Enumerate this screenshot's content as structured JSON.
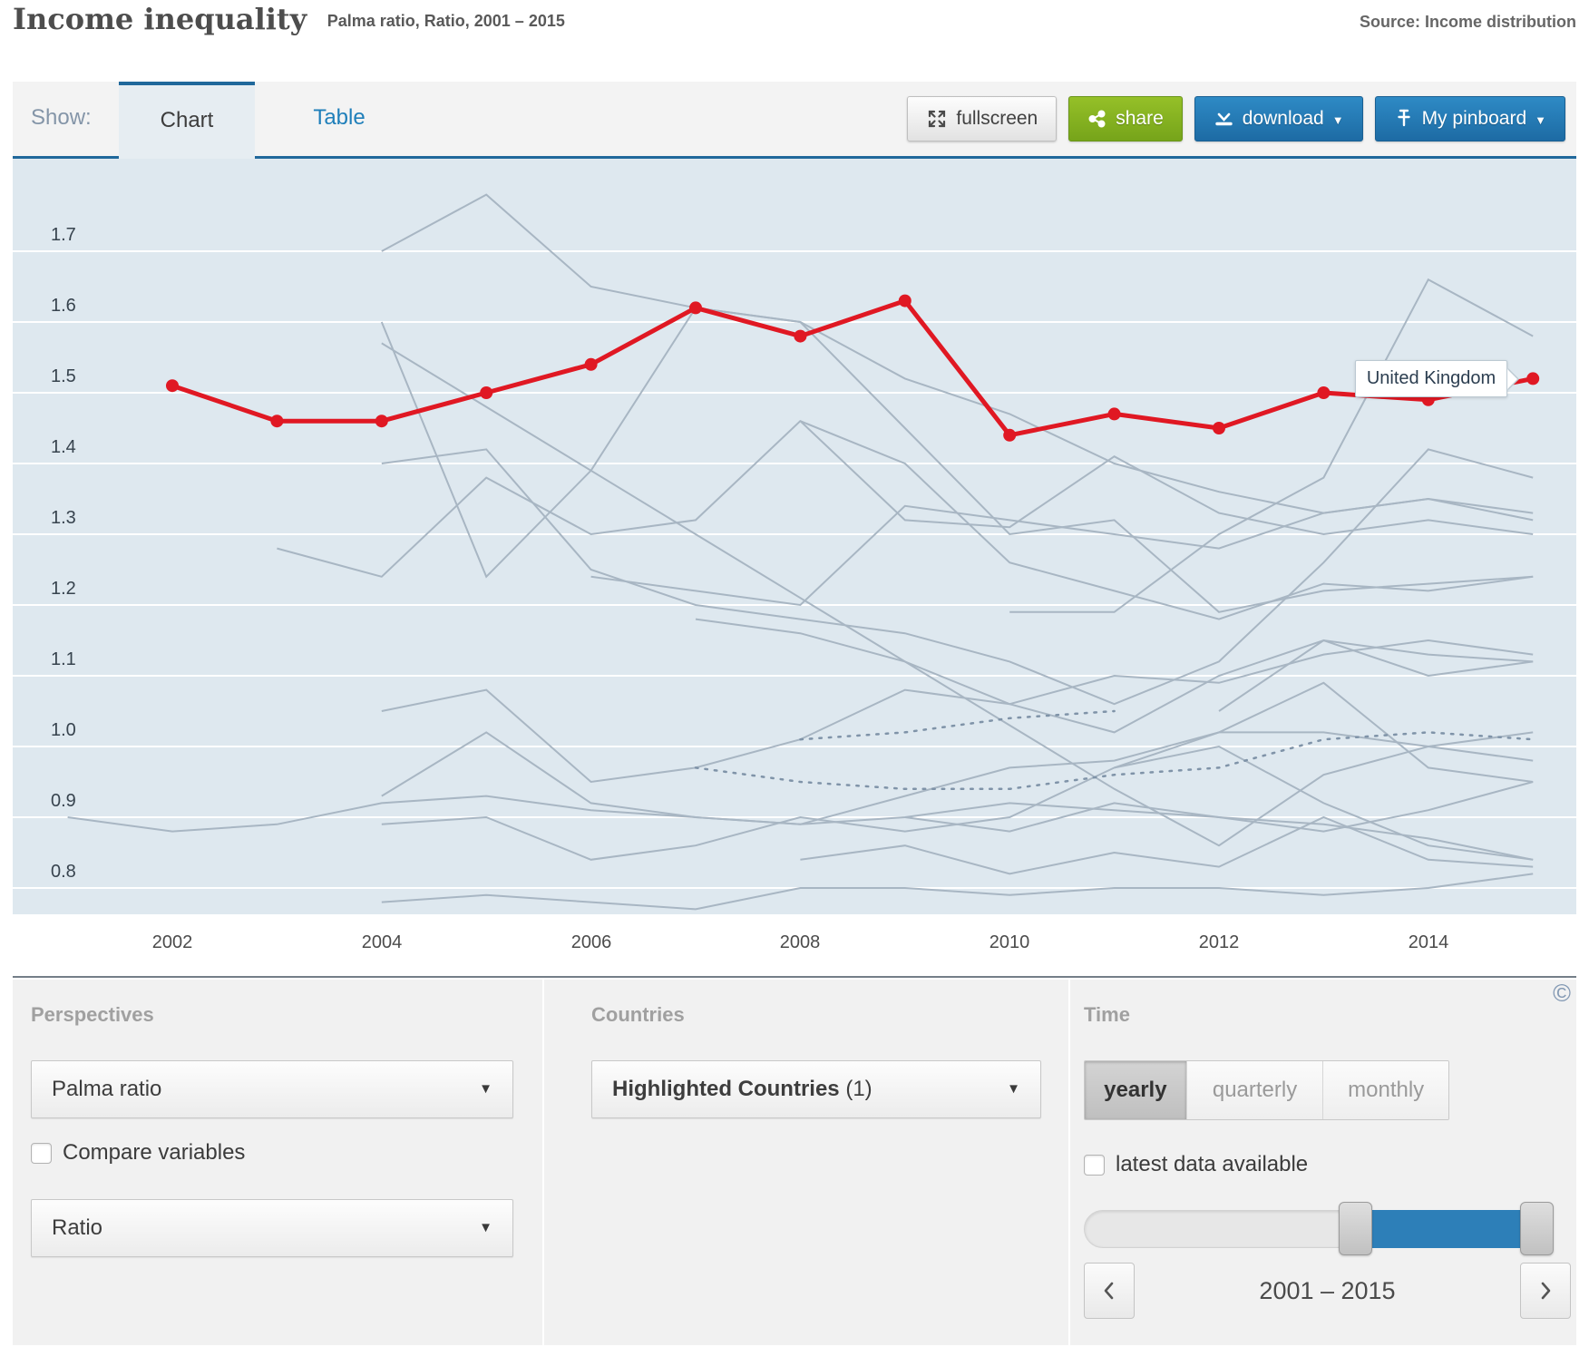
{
  "header": {
    "title": "Income inequality",
    "subtitle": "Palma ratio, Ratio, 2001 – 2015",
    "source": "Source: Income distribution"
  },
  "toolbar": {
    "show_label": "Show:",
    "tabs": [
      {
        "label": "Chart",
        "active": true
      },
      {
        "label": "Table",
        "active": false
      }
    ],
    "fullscreen_label": "fullscreen",
    "share_label": "share",
    "download_label": "download",
    "pinboard_label": "My pinboard"
  },
  "chart_data": {
    "type": "line",
    "title": "Income inequality, Palma ratio, 2001 – 2015",
    "ylabel": "Ratio",
    "xticks": [
      2002,
      2004,
      2006,
      2008,
      2010,
      2012,
      2014
    ],
    "yticks": [
      0.8,
      0.9,
      1.0,
      1.1,
      1.2,
      1.3,
      1.4,
      1.5,
      1.6,
      1.7
    ],
    "xlim": [
      2001,
      2015.5
    ],
    "ylim": [
      0.76,
      1.83
    ],
    "grid": true,
    "colors": {
      "highlight": "#e01823",
      "background_line": "#a8b6c3",
      "plot_bg": "#dee8ef"
    },
    "highlighted": {
      "name": "United Kingdom",
      "years": [
        2002,
        2003,
        2004,
        2005,
        2006,
        2007,
        2008,
        2009,
        2010,
        2011,
        2012,
        2013,
        2014,
        2015
      ],
      "values": [
        1.51,
        1.46,
        1.46,
        1.5,
        1.54,
        1.62,
        1.58,
        1.63,
        1.44,
        1.47,
        1.45,
        1.5,
        1.49,
        1.52
      ]
    },
    "start_year": 2001,
    "background_series": [
      {
        "values": [
          0.9,
          0.88,
          0.89,
          0.92,
          0.93,
          0.91,
          0.9,
          0.89,
          0.9,
          0.92,
          0.91,
          0.9,
          0.89,
          0.87,
          0.84
        ]
      },
      {
        "values": [
          null,
          null,
          null,
          1.7,
          1.78,
          1.65,
          1.62,
          1.6,
          1.52,
          1.47,
          1.4,
          1.36,
          1.33,
          1.35,
          1.33
        ]
      },
      {
        "values": [
          null,
          null,
          null,
          1.6,
          1.24,
          1.39,
          1.62,
          1.6,
          1.45,
          1.3,
          1.32,
          1.19,
          1.22,
          1.23,
          1.24
        ]
      },
      {
        "values": [
          null,
          null,
          1.28,
          1.24,
          1.38,
          1.3,
          1.32,
          1.46,
          1.4,
          1.26,
          1.22,
          1.18,
          1.23,
          1.22,
          1.24
        ]
      },
      {
        "values": [
          null,
          null,
          null,
          1.4,
          1.42,
          1.25,
          1.2,
          1.18,
          1.16,
          1.12,
          1.06,
          1.12,
          1.26,
          1.42,
          1.38
        ]
      },
      {
        "values": [
          null,
          null,
          null,
          null,
          null,
          null,
          null,
          null,
          null,
          1.19,
          1.19,
          1.3,
          1.38,
          1.66,
          1.58
        ]
      },
      {
        "values": [
          null,
          null,
          null,
          1.05,
          1.08,
          0.95,
          0.97,
          1.01,
          1.08,
          1.06,
          1.1,
          1.09,
          1.13,
          1.15,
          1.13
        ]
      },
      {
        "values": [
          null,
          null,
          null,
          0.93,
          1.02,
          0.92,
          0.9,
          0.89,
          0.93,
          0.97,
          0.98,
          1.02,
          1.02,
          1.0,
          1.02
        ]
      },
      {
        "values": [
          null,
          null,
          null,
          0.89,
          0.9,
          0.84,
          0.86,
          0.9,
          0.88,
          0.9,
          0.97,
          1.02,
          1.09,
          0.97,
          0.95
        ]
      },
      {
        "values": [
          null,
          null,
          null,
          0.78,
          0.79,
          0.78,
          0.77,
          0.8,
          0.8,
          0.79,
          0.8,
          0.8,
          0.79,
          0.8,
          0.82
        ]
      },
      {
        "values": [
          null,
          null,
          null,
          null,
          null,
          null,
          1.18,
          1.16,
          1.12,
          1.06,
          1.02,
          1.1,
          1.15,
          1.13,
          1.12
        ]
      },
      {
        "values": [
          null,
          null,
          null,
          null,
          null,
          1.24,
          1.22,
          1.2,
          1.34,
          1.32,
          1.3,
          1.28,
          1.33,
          1.35,
          1.32
        ]
      },
      {
        "values": [
          null,
          null,
          null,
          null,
          null,
          null,
          null,
          1.46,
          1.32,
          1.31,
          1.41,
          1.33,
          1.3,
          1.32,
          1.3
        ]
      },
      {
        "values": [
          null,
          null,
          null,
          null,
          null,
          null,
          null,
          null,
          0.9,
          0.88,
          0.92,
          0.9,
          0.88,
          0.91,
          0.95
        ]
      },
      {
        "values": [
          null,
          null,
          null,
          null,
          null,
          null,
          null,
          0.84,
          0.86,
          0.82,
          0.85,
          0.83,
          0.9,
          0.84,
          0.83
        ]
      },
      {
        "values": [
          null,
          null,
          null,
          null,
          null,
          null,
          null,
          null,
          null,
          null,
          0.97,
          1.0,
          0.92,
          0.86,
          0.84
        ]
      },
      {
        "values": [
          null,
          null,
          null,
          1.57,
          1.48,
          1.39,
          1.3,
          1.21,
          1.12,
          1.03,
          0.94,
          0.86,
          0.96,
          1.0,
          0.98
        ]
      },
      {
        "values": [
          null,
          null,
          null,
          null,
          null,
          null,
          null,
          null,
          null,
          null,
          null,
          1.05,
          1.15,
          1.1,
          1.12
        ]
      }
    ],
    "dotted_series": [
      {
        "values": [
          null,
          null,
          null,
          null,
          null,
          null,
          null,
          1.01,
          1.02,
          1.04,
          1.05,
          null,
          null,
          null,
          null
        ]
      },
      {
        "values": [
          null,
          null,
          null,
          null,
          null,
          null,
          0.97,
          0.95,
          0.94,
          0.94,
          0.96,
          0.97,
          1.01,
          1.02,
          1.01
        ]
      }
    ],
    "legend_position": "none"
  },
  "tooltip": {
    "label": "United Kingdom"
  },
  "panel": {
    "perspectives": {
      "heading": "Perspectives",
      "dropdown1": "Palma ratio",
      "compare_label": "Compare variables",
      "compare_checked": false,
      "dropdown2": "Ratio"
    },
    "countries": {
      "heading": "Countries",
      "dropdown_bold": "Highlighted Countries",
      "dropdown_suffix": "(1)"
    },
    "time": {
      "heading": "Time",
      "frequency": [
        "yearly",
        "quarterly",
        "monthly"
      ],
      "active_frequency": "yearly",
      "latest_label": "latest data available",
      "latest_checked": false,
      "range_label": "2001 – 2015"
    },
    "copyright": "©"
  }
}
